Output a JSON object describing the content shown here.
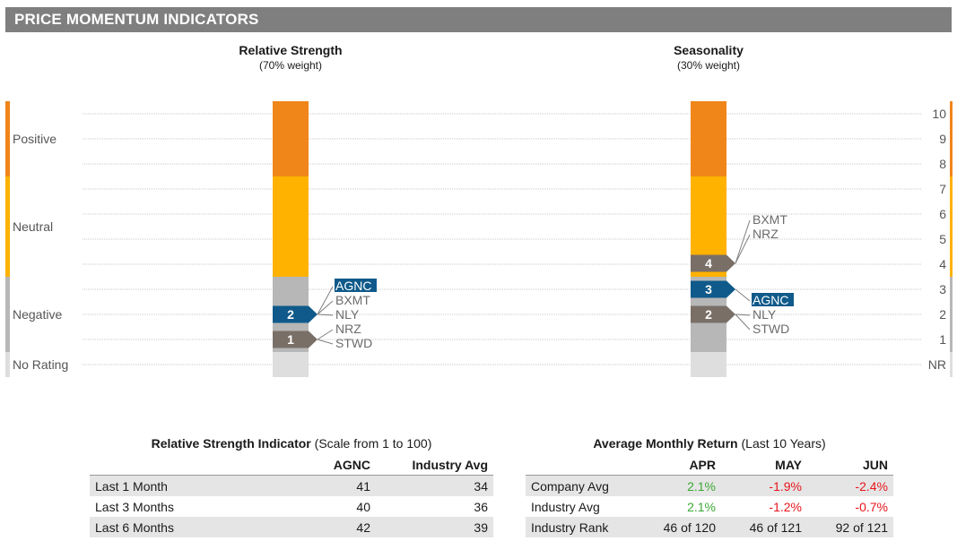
{
  "banner": "PRICE MOMENTUM INDICATORS",
  "colors": {
    "positive": "#f0861a",
    "neutral": "#ffb200",
    "negative": "#b7b7b7",
    "no_rating": "#dedede",
    "marker_company": "#0f5a8a",
    "marker_peer": "#7a6f67",
    "text_positive": "#3aaa35",
    "text_negative": "#e8141b"
  },
  "chart_data": [
    {
      "type": "bar",
      "title": "Relative Strength",
      "subtitle": "(70% weight)",
      "scale_bands": [
        "Positive",
        "Neutral",
        "Negative",
        "No Rating"
      ],
      "markers": [
        {
          "label": "2",
          "band": "Negative",
          "level": 2,
          "tickers": [
            "AGNC",
            "BXMT",
            "NLY"
          ],
          "highlight": "AGNC"
        },
        {
          "label": "1",
          "band": "Negative",
          "level": 1,
          "tickers": [
            "NRZ",
            "STWD"
          ],
          "highlight": ""
        }
      ]
    },
    {
      "type": "bar",
      "title": "Seasonality",
      "subtitle": "(30% weight)",
      "y_ticks": [
        "10",
        "9",
        "8",
        "7",
        "6",
        "5",
        "4",
        "3",
        "2",
        "1",
        "NR"
      ],
      "markers": [
        {
          "label": "4",
          "value": 4,
          "tickers": [
            "BXMT",
            "NRZ"
          ],
          "highlight": ""
        },
        {
          "label": "3",
          "value": 3,
          "tickers": [
            "AGNC"
          ],
          "highlight": "AGNC"
        },
        {
          "label": "2",
          "value": 2,
          "tickers": [
            "NLY",
            "STWD"
          ],
          "highlight": ""
        }
      ]
    }
  ],
  "rsi_table": {
    "title_bold": "Relative Strength Indicator",
    "title_rest": " (Scale from 1 to 100)",
    "headers": [
      "",
      "AGNC",
      "Industry Avg"
    ],
    "rows": [
      [
        "Last 1 Month",
        "41",
        "34"
      ],
      [
        "Last 3 Months",
        "40",
        "36"
      ],
      [
        "Last 6 Months",
        "42",
        "39"
      ]
    ]
  },
  "amr_table": {
    "title_bold": "Average Monthly Return",
    "title_rest": " (Last 10 Years)",
    "headers": [
      "",
      "APR",
      "MAY",
      "JUN"
    ],
    "rows": [
      [
        "Company Avg",
        "2.1%",
        "-1.9%",
        "-2.4%"
      ],
      [
        "Industry Avg",
        "2.1%",
        "-1.2%",
        "-0.7%"
      ],
      [
        "Industry Rank",
        "46 of 120",
        "46 of 121",
        "92 of 121"
      ]
    ]
  }
}
